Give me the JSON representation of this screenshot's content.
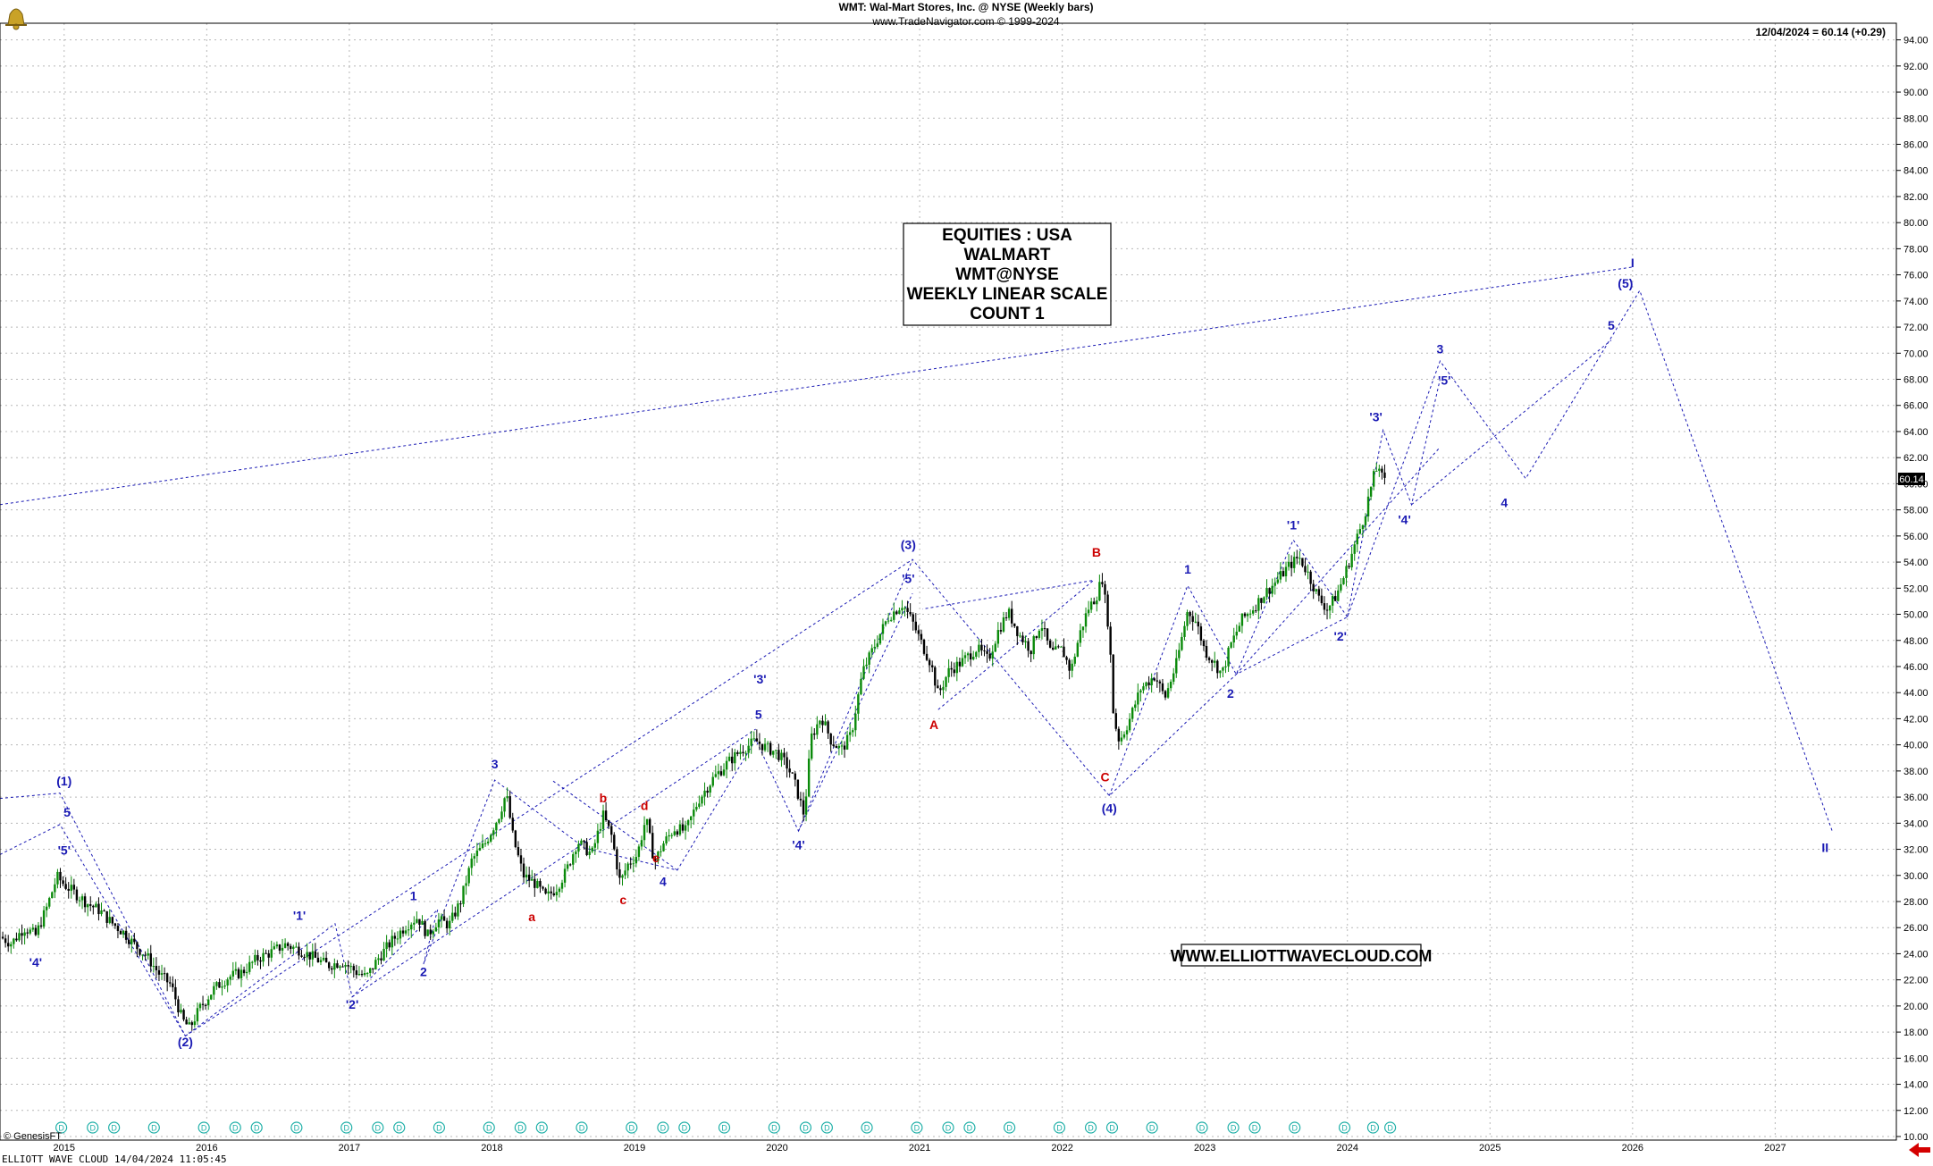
{
  "header": {
    "title": "WMT:  Wal-Mart Stores, Inc. @ NYSE  (Weekly bars)",
    "subtitle": "www.TradeNavigator.com © 1999-2024",
    "last_price_note": "12/04/2024 = 60.14 (+0.29)"
  },
  "annotation_box": [
    "EQUITIES : USA",
    "WALMART",
    "WMT@NYSE",
    "WEEKLY LINEAR SCALE",
    "COUNT 1"
  ],
  "website": "WWW.ELLIOTTWAVECLOUD.COM",
  "footer": {
    "left": "ELLIOTT WAVE CLOUD   14/04/2024 11:05:45",
    "genesis": "© GenesisFT"
  },
  "colors": {
    "bull_candle": "#0a8a0a",
    "bear_candle": "#000000",
    "wave_blue": "#1a1ab4",
    "wave_red": "#cc0000",
    "dividend_marker": "#20b0a8",
    "grid": "#b8b8b8"
  },
  "chart_data": {
    "type": "line",
    "ylim": [
      10,
      95
    ],
    "xlim": [
      2014.55,
      2027.85
    ],
    "grid": true,
    "last_price_label": "60.14",
    "y_ticks": [
      "10.00",
      "12.00",
      "14.00",
      "16.00",
      "18.00",
      "20.00",
      "22.00",
      "24.00",
      "26.00",
      "28.00",
      "30.00",
      "32.00",
      "34.00",
      "36.00",
      "38.00",
      "40.00",
      "42.00",
      "44.00",
      "46.00",
      "48.00",
      "50.00",
      "52.00",
      "54.00",
      "56.00",
      "58.00",
      "60.00",
      "62.00",
      "64.00",
      "66.00",
      "68.00",
      "70.00",
      "72.00",
      "74.00",
      "76.00",
      "78.00",
      "80.00",
      "82.00",
      "84.00",
      "86.00",
      "88.00",
      "90.00",
      "92.00",
      "94.00"
    ],
    "x_ticks": [
      {
        "label": "2015",
        "x": 2015.0
      },
      {
        "label": "2016",
        "x": 2016.0
      },
      {
        "label": "2017",
        "x": 2017.0
      },
      {
        "label": "2018",
        "x": 2018.0
      },
      {
        "label": "2019",
        "x": 2019.0
      },
      {
        "label": "2020",
        "x": 2020.0
      },
      {
        "label": "2021",
        "x": 2021.0
      },
      {
        "label": "2022",
        "x": 2022.0
      },
      {
        "label": "2023",
        "x": 2023.0
      },
      {
        "label": "2024",
        "x": 2024.0
      },
      {
        "label": "2025",
        "x": 2025.0
      },
      {
        "label": "2026",
        "x": 2026.0
      },
      {
        "label": "2027",
        "x": 2027.0
      }
    ],
    "price_series": {
      "name": "WMT",
      "points": [
        [
          2014.55,
          25.3
        ],
        [
          2014.63,
          24.8
        ],
        [
          2014.72,
          26.0
        ],
        [
          2014.8,
          25.4
        ],
        [
          2014.88,
          27.6
        ],
        [
          2014.95,
          29.9
        ],
        [
          2015.0,
          29.3
        ],
        [
          2015.08,
          28.6
        ],
        [
          2015.17,
          27.8
        ],
        [
          2015.25,
          27.3
        ],
        [
          2015.33,
          26.4
        ],
        [
          2015.42,
          25.6
        ],
        [
          2015.5,
          24.6
        ],
        [
          2015.58,
          23.8
        ],
        [
          2015.67,
          22.4
        ],
        [
          2015.75,
          21.6
        ],
        [
          2015.83,
          18.9
        ],
        [
          2015.88,
          18.3
        ],
        [
          2015.95,
          19.8
        ],
        [
          2016.05,
          21.3
        ],
        [
          2016.15,
          22.2
        ],
        [
          2016.25,
          22.6
        ],
        [
          2016.35,
          23.6
        ],
        [
          2016.45,
          24.1
        ],
        [
          2016.55,
          24.7
        ],
        [
          2016.65,
          24.3
        ],
        [
          2016.75,
          23.7
        ],
        [
          2016.85,
          23.1
        ],
        [
          2016.95,
          23.4
        ],
        [
          2017.05,
          22.6
        ],
        [
          2017.12,
          22.2
        ],
        [
          2017.2,
          23.6
        ],
        [
          2017.3,
          25.0
        ],
        [
          2017.4,
          26.2
        ],
        [
          2017.48,
          26.8
        ],
        [
          2017.55,
          25.4
        ],
        [
          2017.62,
          26.6
        ],
        [
          2017.7,
          26.2
        ],
        [
          2017.78,
          28.0
        ],
        [
          2017.86,
          31.2
        ],
        [
          2017.95,
          32.4
        ],
        [
          2018.05,
          34.6
        ],
        [
          2018.1,
          36.3
        ],
        [
          2018.15,
          32.8
        ],
        [
          2018.22,
          30.0
        ],
        [
          2018.3,
          29.4
        ],
        [
          2018.38,
          28.3
        ],
        [
          2018.45,
          29.0
        ],
        [
          2018.52,
          30.3
        ],
        [
          2018.6,
          32.6
        ],
        [
          2018.7,
          31.6
        ],
        [
          2018.78,
          34.6
        ],
        [
          2018.84,
          33.0
        ],
        [
          2018.9,
          29.4
        ],
        [
          2018.95,
          30.8
        ],
        [
          2019.02,
          31.6
        ],
        [
          2019.08,
          34.4
        ],
        [
          2019.14,
          31.0
        ],
        [
          2019.2,
          32.4
        ],
        [
          2019.28,
          33.6
        ],
        [
          2019.36,
          33.4
        ],
        [
          2019.45,
          35.8
        ],
        [
          2019.55,
          37.4
        ],
        [
          2019.65,
          38.6
        ],
        [
          2019.75,
          39.6
        ],
        [
          2019.85,
          40.3
        ],
        [
          2019.92,
          39.8
        ],
        [
          2020.0,
          39.4
        ],
        [
          2020.07,
          38.4
        ],
        [
          2020.12,
          37.2
        ],
        [
          2020.19,
          34.6
        ],
        [
          2020.24,
          40.6
        ],
        [
          2020.31,
          42.2
        ],
        [
          2020.38,
          40.3
        ],
        [
          2020.45,
          39.6
        ],
        [
          2020.52,
          40.8
        ],
        [
          2020.6,
          45.6
        ],
        [
          2020.7,
          48.0
        ],
        [
          2020.78,
          49.8
        ],
        [
          2020.88,
          50.8
        ],
        [
          2020.95,
          49.4
        ],
        [
          2021.02,
          47.6
        ],
        [
          2021.08,
          46.2
        ],
        [
          2021.13,
          43.8
        ],
        [
          2021.2,
          45.6
        ],
        [
          2021.3,
          46.4
        ],
        [
          2021.4,
          47.4
        ],
        [
          2021.48,
          46.5
        ],
        [
          2021.55,
          48.7
        ],
        [
          2021.62,
          50.2
        ],
        [
          2021.7,
          48.4
        ],
        [
          2021.78,
          47.3
        ],
        [
          2021.85,
          49.4
        ],
        [
          2021.92,
          47.0
        ],
        [
          2022.0,
          47.3
        ],
        [
          2022.06,
          45.6
        ],
        [
          2022.12,
          48.4
        ],
        [
          2022.18,
          50.4
        ],
        [
          2022.24,
          51.4
        ],
        [
          2022.28,
          52.8
        ],
        [
          2022.33,
          48.6
        ],
        [
          2022.36,
          42.1
        ],
        [
          2022.4,
          40.3
        ],
        [
          2022.46,
          41.6
        ],
        [
          2022.55,
          44.3
        ],
        [
          2022.65,
          45.3
        ],
        [
          2022.72,
          43.6
        ],
        [
          2022.8,
          46.2
        ],
        [
          2022.88,
          50.3
        ],
        [
          2022.94,
          49.4
        ],
        [
          2023.0,
          47.2
        ],
        [
          2023.06,
          46.4
        ],
        [
          2023.12,
          45.4
        ],
        [
          2023.18,
          47.6
        ],
        [
          2023.26,
          49.6
        ],
        [
          2023.35,
          50.6
        ],
        [
          2023.42,
          51.6
        ],
        [
          2023.5,
          52.5
        ],
        [
          2023.58,
          53.6
        ],
        [
          2023.66,
          54.4
        ],
        [
          2023.72,
          53.2
        ],
        [
          2023.8,
          51.2
        ],
        [
          2023.86,
          50.4
        ],
        [
          2023.92,
          51.4
        ],
        [
          2023.98,
          53.0
        ],
        [
          2024.06,
          55.6
        ],
        [
          2024.12,
          57.6
        ],
        [
          2024.18,
          60.4
        ],
        [
          2024.22,
          61.5
        ],
        [
          2024.25,
          60.1
        ],
        [
          2024.28,
          60.14
        ]
      ]
    },
    "wave_paths": [
      {
        "color": "blue",
        "points": [
          [
            2014.55,
            35.9
          ],
          [
            2014.97,
            36.3
          ],
          [
            2015.85,
            17.7
          ],
          [
            2016.9,
            26.3
          ],
          [
            2017.02,
            20.7
          ],
          [
            2017.62,
            27.4
          ],
          [
            2017.52,
            23.2
          ],
          [
            2018.02,
            37.3
          ],
          [
            2018.65,
            32.1
          ],
          [
            2019.3,
            30.4
          ],
          [
            2019.85,
            40.4
          ],
          [
            2020.15,
            33.4
          ],
          [
            2020.95,
            54.2
          ],
          [
            2022.33,
            36.1
          ],
          [
            2023.22,
            45.4
          ],
          [
            2024.0,
            49.8
          ],
          [
            2024.65,
            69.4
          ],
          [
            2025.25,
            60.4
          ],
          [
            2026.05,
            74.8
          ],
          [
            2027.4,
            33.4
          ]
        ]
      },
      {
        "color": "blue",
        "points": [
          [
            2014.55,
            31.6
          ],
          [
            2014.97,
            33.9
          ],
          [
            2015.85,
            17.7
          ]
        ]
      },
      {
        "color": "blue",
        "points": [
          [
            2015.85,
            17.7
          ],
          [
            2020.95,
            54.2
          ]
        ]
      },
      {
        "color": "blue",
        "points": [
          [
            2017.02,
            20.7
          ],
          [
            2019.85,
            41.2
          ]
        ]
      },
      {
        "color": "blue",
        "points": [
          [
            2019.3,
            30.4
          ],
          [
            2018.42,
            37.3
          ]
        ]
      },
      {
        "color": "blue",
        "points": [
          [
            2020.15,
            33.4
          ],
          [
            2020.95,
            51.6
          ]
        ]
      },
      {
        "color": "blue",
        "points": [
          [
            2023.22,
            45.4
          ],
          [
            2024.65,
            62.8
          ]
        ]
      },
      {
        "color": "blue",
        "points": [
          [
            2024.0,
            49.8
          ],
          [
            2024.25,
            64.1
          ],
          [
            2024.45,
            58.4
          ],
          [
            2024.65,
            68.0
          ]
        ]
      },
      {
        "color": "blue",
        "points": [
          [
            2024.45,
            58.4
          ],
          [
            2025.85,
            71.0
          ]
        ]
      },
      {
        "color": "blue",
        "points": [
          [
            2022.33,
            36.1
          ],
          [
            2022.88,
            52.2
          ],
          [
            2023.22,
            45.4
          ],
          [
            2023.62,
            55.7
          ],
          [
            2024.0,
            49.8
          ]
        ]
      },
      {
        "color": "blue",
        "points": [
          [
            2021.13,
            42.7
          ],
          [
            2022.22,
            52.6
          ],
          [
            2021.02,
            50.4
          ]
        ]
      },
      {
        "color": "blue",
        "points": [
          [
            2014.55,
            58.4
          ],
          [
            2026.0,
            76.6
          ]
        ]
      }
    ],
    "wave_labels": [
      {
        "text": "(1)",
        "x": 2015.0,
        "y": 36.9,
        "color": "blue"
      },
      {
        "text": "5",
        "x": 2015.02,
        "y": 34.5,
        "color": "blue"
      },
      {
        "text": "'5'",
        "x": 2015.0,
        "y": 31.6,
        "color": "blue"
      },
      {
        "text": "'4'",
        "x": 2014.8,
        "y": 23.0,
        "color": "blue"
      },
      {
        "text": "(2)",
        "x": 2015.85,
        "y": 16.9,
        "color": "blue"
      },
      {
        "text": "'1'",
        "x": 2016.65,
        "y": 26.6,
        "color": "blue"
      },
      {
        "text": "'2'",
        "x": 2017.02,
        "y": 19.8,
        "color": "blue"
      },
      {
        "text": "1",
        "x": 2017.45,
        "y": 28.1,
        "color": "blue"
      },
      {
        "text": "2",
        "x": 2017.52,
        "y": 22.3,
        "color": "blue"
      },
      {
        "text": "3",
        "x": 2018.02,
        "y": 38.2,
        "color": "blue"
      },
      {
        "text": "a",
        "x": 2018.28,
        "y": 26.5,
        "color": "red"
      },
      {
        "text": "b",
        "x": 2018.78,
        "y": 35.6,
        "color": "red"
      },
      {
        "text": "c",
        "x": 2018.92,
        "y": 27.8,
        "color": "red"
      },
      {
        "text": "d",
        "x": 2019.07,
        "y": 35.0,
        "color": "red"
      },
      {
        "text": "e",
        "x": 2019.15,
        "y": 31.0,
        "color": "red"
      },
      {
        "text": "4",
        "x": 2019.2,
        "y": 29.2,
        "color": "blue"
      },
      {
        "text": "'3'",
        "x": 2019.88,
        "y": 44.7,
        "color": "blue"
      },
      {
        "text": "5",
        "x": 2019.87,
        "y": 42.0,
        "color": "blue"
      },
      {
        "text": "'4'",
        "x": 2020.15,
        "y": 32.0,
        "color": "blue"
      },
      {
        "text": "(3)",
        "x": 2020.92,
        "y": 55.0,
        "color": "blue"
      },
      {
        "text": "'5'",
        "x": 2020.92,
        "y": 52.4,
        "color": "blue"
      },
      {
        "text": "A",
        "x": 2021.1,
        "y": 41.2,
        "color": "red"
      },
      {
        "text": "B",
        "x": 2022.24,
        "y": 54.4,
        "color": "red"
      },
      {
        "text": "C",
        "x": 2022.3,
        "y": 37.2,
        "color": "red"
      },
      {
        "text": "(4)",
        "x": 2022.33,
        "y": 34.8,
        "color": "blue"
      },
      {
        "text": "1",
        "x": 2022.88,
        "y": 53.1,
        "color": "blue"
      },
      {
        "text": "2",
        "x": 2023.18,
        "y": 43.6,
        "color": "blue"
      },
      {
        "text": "'1'",
        "x": 2023.62,
        "y": 56.5,
        "color": "blue"
      },
      {
        "text": "'2'",
        "x": 2023.95,
        "y": 48.0,
        "color": "blue"
      },
      {
        "text": "'3'",
        "x": 2024.2,
        "y": 64.8,
        "color": "blue"
      },
      {
        "text": "'4'",
        "x": 2024.4,
        "y": 56.9,
        "color": "blue"
      },
      {
        "text": "3",
        "x": 2024.65,
        "y": 70.0,
        "color": "blue"
      },
      {
        "text": "'5'",
        "x": 2024.68,
        "y": 67.6,
        "color": "blue"
      },
      {
        "text": "4",
        "x": 2025.1,
        "y": 58.2,
        "color": "blue"
      },
      {
        "text": "5",
        "x": 2025.85,
        "y": 71.8,
        "color": "blue"
      },
      {
        "text": "(5)",
        "x": 2025.95,
        "y": 75.0,
        "color": "blue"
      },
      {
        "text": "I",
        "x": 2026.0,
        "y": 76.6,
        "color": "blue"
      },
      {
        "text": "II",
        "x": 2027.35,
        "y": 31.8,
        "color": "blue"
      }
    ],
    "dividend_markers": [
      2014.98,
      2015.2,
      2015.35,
      2015.63,
      2015.98,
      2016.2,
      2016.35,
      2016.63,
      2016.98,
      2017.2,
      2017.35,
      2017.63,
      2017.98,
      2018.2,
      2018.35,
      2018.63,
      2018.98,
      2019.2,
      2019.35,
      2019.63,
      2019.98,
      2020.2,
      2020.35,
      2020.63,
      2020.98,
      2021.2,
      2021.35,
      2021.63,
      2021.98,
      2022.2,
      2022.35,
      2022.63,
      2022.98,
      2023.2,
      2023.35,
      2023.63,
      2023.98,
      2024.18,
      2024.3
    ],
    "dividend_symbol": "D"
  }
}
